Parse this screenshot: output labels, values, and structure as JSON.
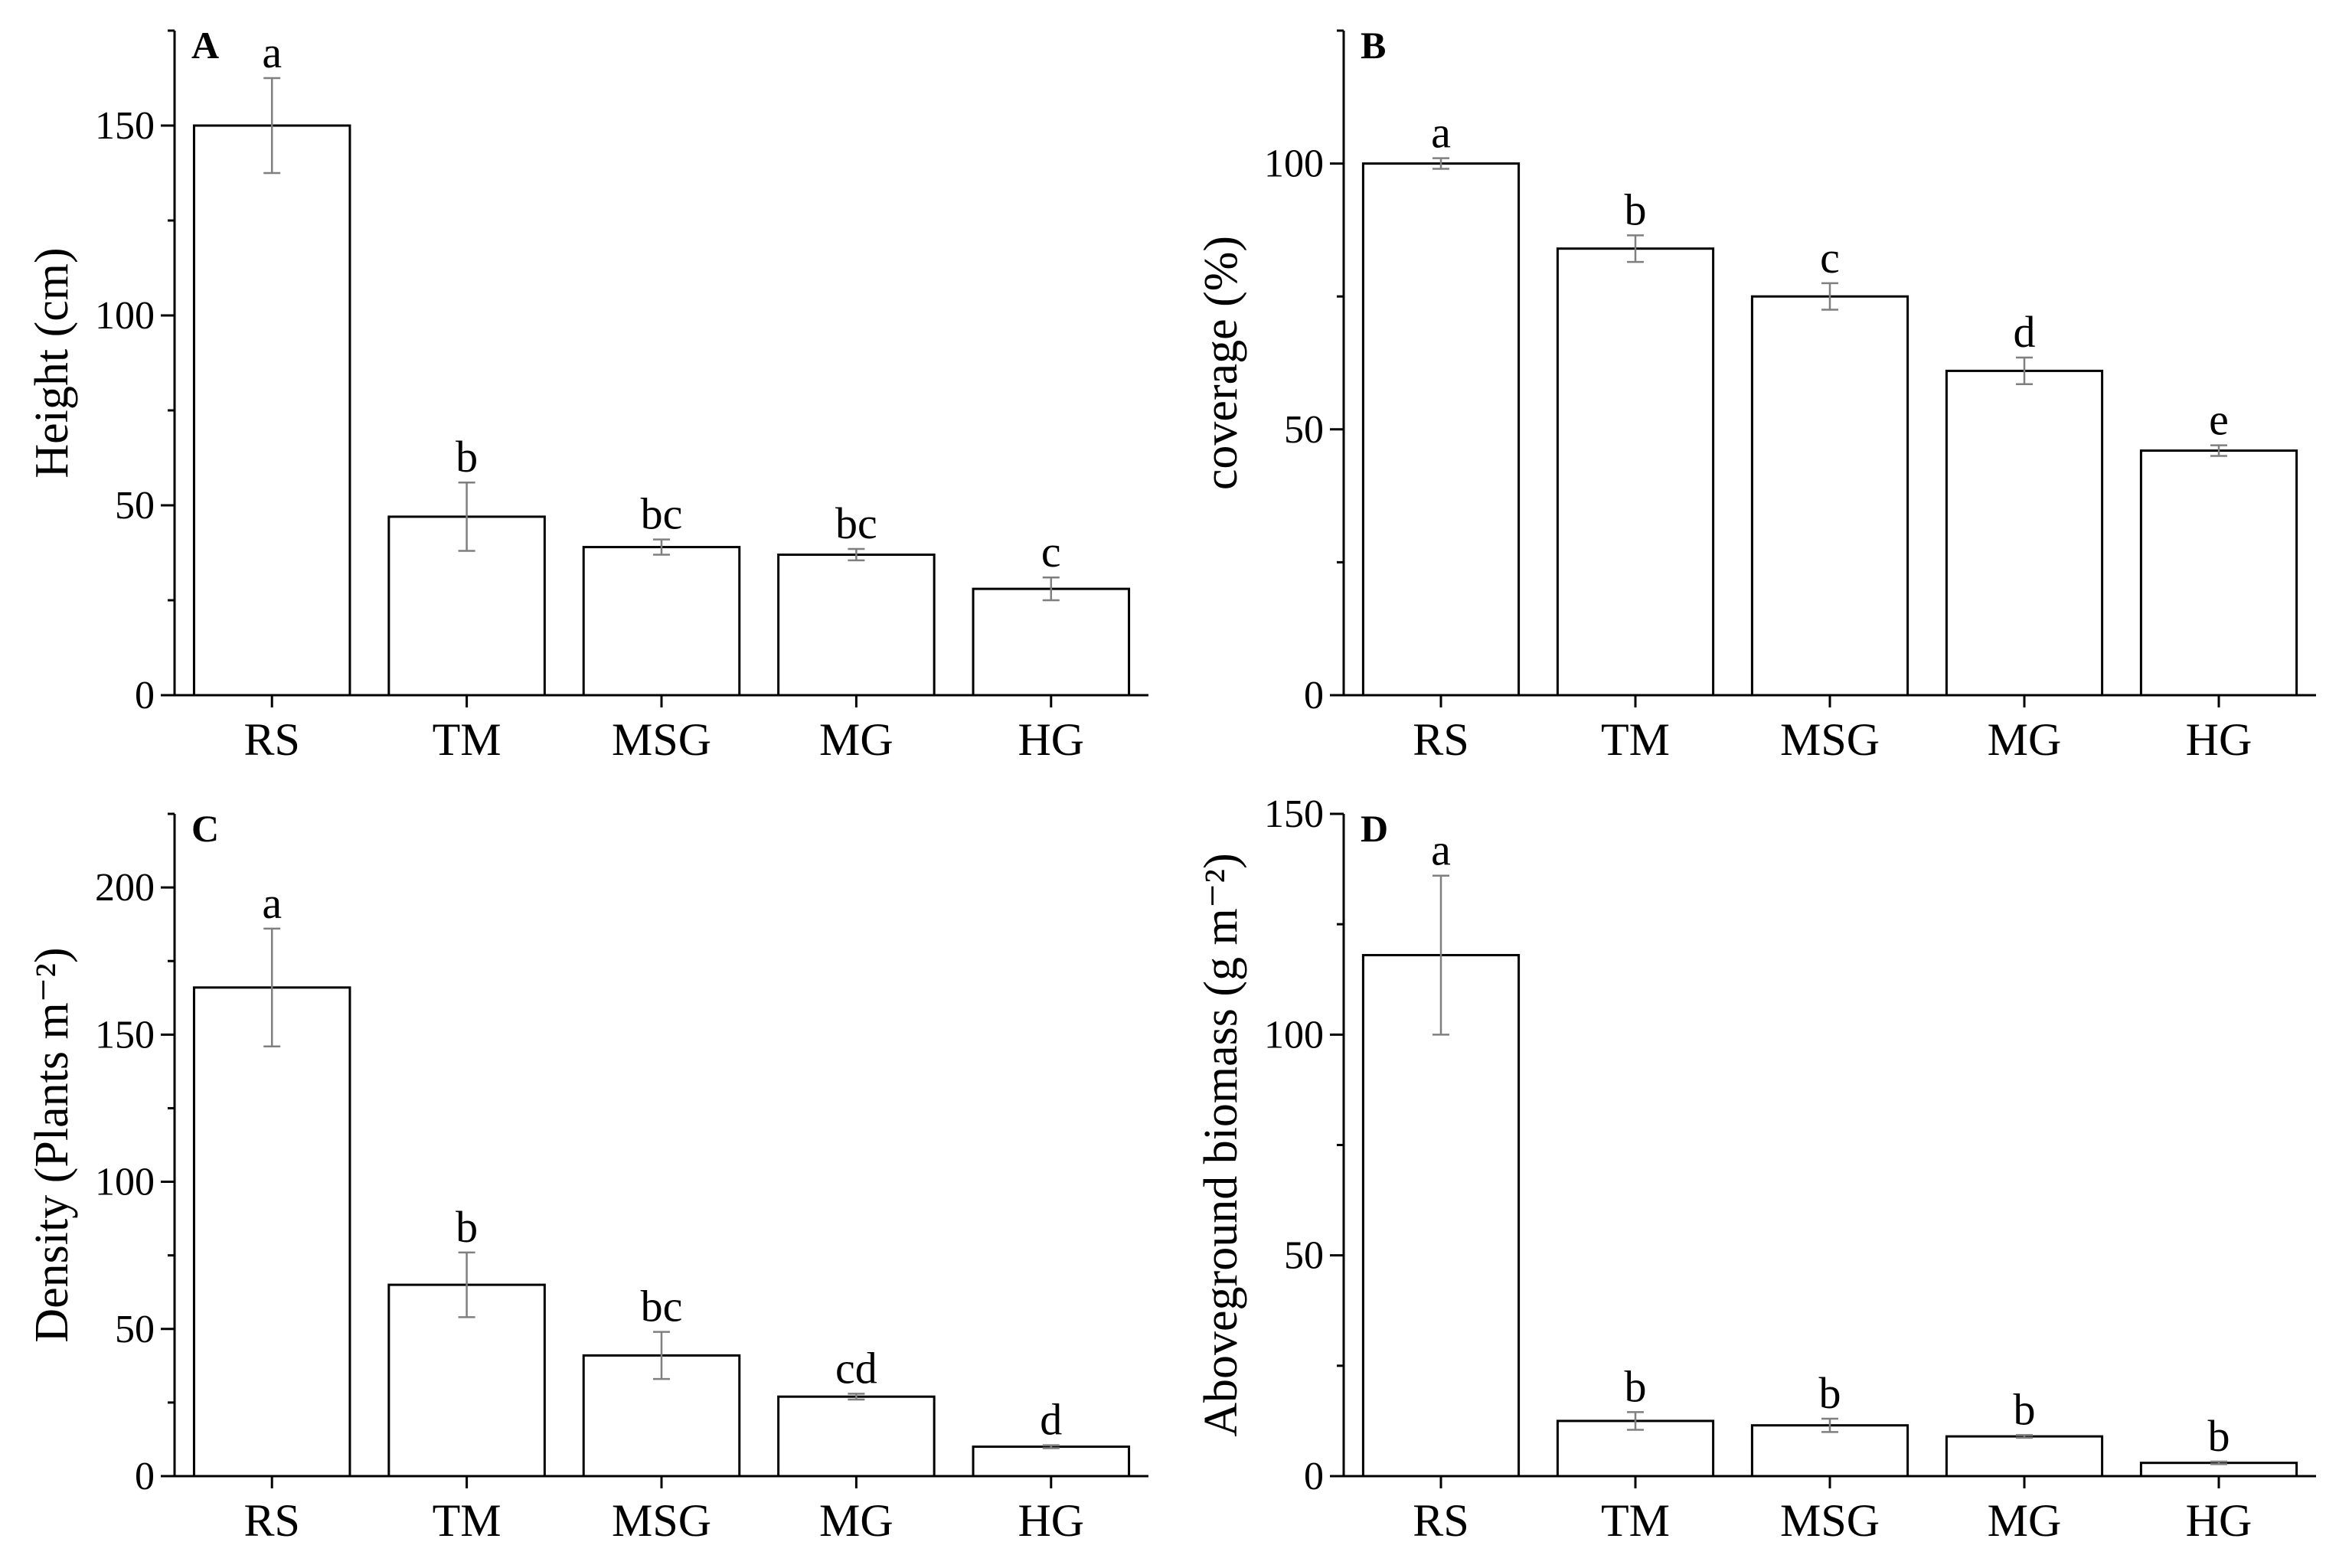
{
  "chart_data": [
    {
      "panel": "A",
      "type": "bar",
      "ylabel": "Height (cm)",
      "categories": [
        "RS",
        "TM",
        "MSG",
        "MG",
        "HG"
      ],
      "values": [
        150,
        47,
        39,
        37,
        28
      ],
      "errors": [
        12.5,
        9,
        2,
        1.5,
        3
      ],
      "significance": [
        "a",
        "b",
        "bc",
        "bc",
        "c"
      ],
      "ylim": [
        0,
        175
      ],
      "yticks": [
        0,
        50,
        100,
        150
      ],
      "ytick_labels": [
        "0",
        "50",
        "100",
        "150"
      ],
      "minor_step": 25
    },
    {
      "panel": "B",
      "type": "bar",
      "ylabel": "coverage (%)",
      "categories": [
        "RS",
        "TM",
        "MSG",
        "MG",
        "HG"
      ],
      "values": [
        100,
        84,
        75,
        61,
        46
      ],
      "errors": [
        1,
        2.5,
        2.5,
        2.5,
        1
      ],
      "significance": [
        "a",
        "b",
        "c",
        "d",
        "e"
      ],
      "ylim": [
        0,
        125
      ],
      "yticks": [
        0,
        50,
        100
      ],
      "ytick_labels": [
        "0",
        "50",
        "100"
      ],
      "minor_step": 25
    },
    {
      "panel": "C",
      "type": "bar",
      "ylabel": "Density (Plants m⁻²)",
      "categories": [
        "RS",
        "TM",
        "MSG",
        "MG",
        "HG"
      ],
      "values": [
        166,
        65,
        41,
        27,
        10
      ],
      "errors": [
        20,
        11,
        8,
        1,
        0.5
      ],
      "significance": [
        "a",
        "b",
        "bc",
        "cd",
        "d"
      ],
      "ylim": [
        0,
        225
      ],
      "yticks": [
        0,
        50,
        100,
        150,
        200
      ],
      "ytick_labels": [
        "0",
        "50",
        "100",
        "150",
        "200"
      ],
      "minor_step": 25
    },
    {
      "panel": "D",
      "type": "bar",
      "ylabel": "Aboveground biomass (g m⁻²)",
      "categories": [
        "RS",
        "TM",
        "MSG",
        "MG",
        "HG"
      ],
      "values": [
        118,
        12.5,
        11.5,
        9,
        3
      ],
      "errors": [
        18,
        2,
        1.5,
        0.3,
        0.3
      ],
      "significance": [
        "a",
        "b",
        "b",
        "b",
        "b"
      ],
      "ylim": [
        0,
        150
      ],
      "yticks": [
        0,
        50,
        100,
        150
      ],
      "ytick_labels": [
        "0",
        "50",
        "100",
        "150"
      ],
      "minor_step": 25
    }
  ]
}
